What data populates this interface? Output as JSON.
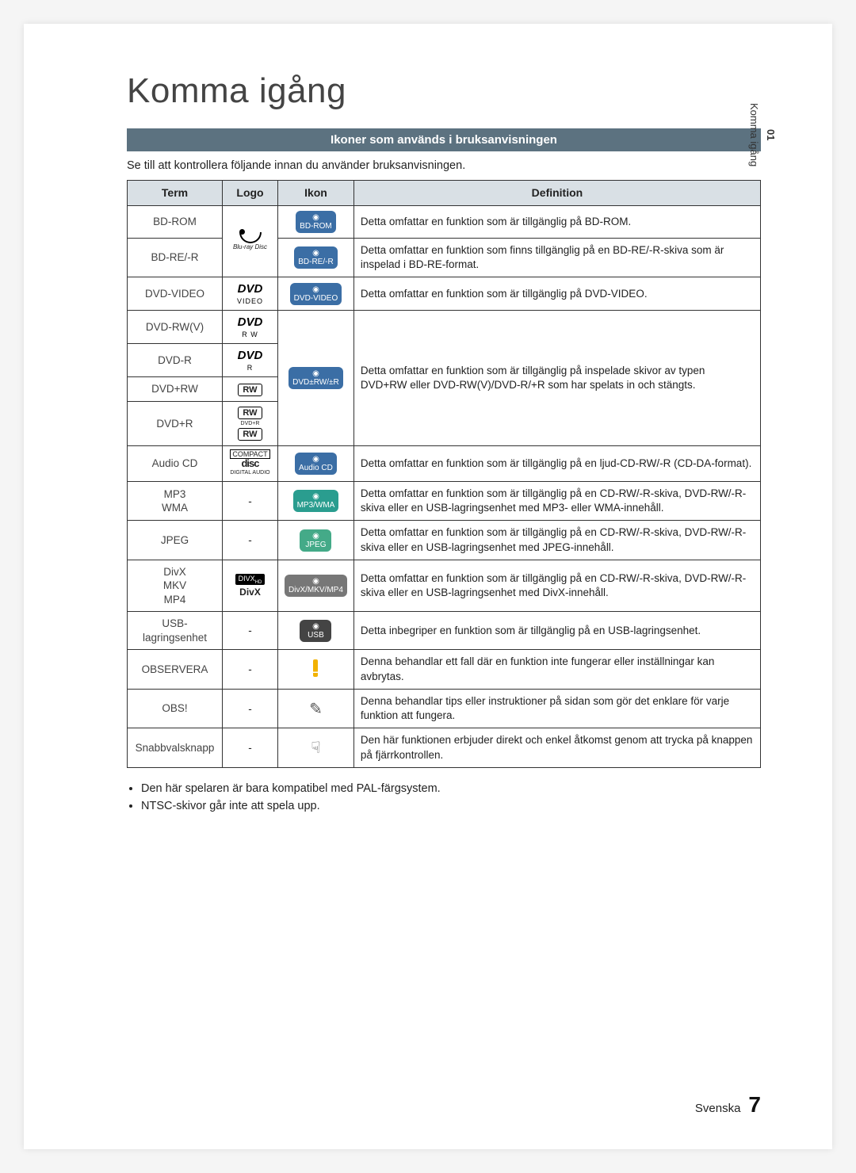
{
  "page": {
    "title": "Komma igång",
    "section_heading": "Ikoner som används i bruksanvisningen",
    "intro": "Se till att kontrollera följande innan du använder bruksanvisningen.",
    "side_tab": {
      "number": "01",
      "label": "Komma igång"
    },
    "footer": {
      "lang": "Svenska",
      "page_number": "7"
    }
  },
  "table": {
    "headers": {
      "term": "Term",
      "logo": "Logo",
      "ikon": "Ikon",
      "definition": "Definition"
    },
    "col_widths": {
      "term": 120,
      "logo": 70,
      "icon": 70
    },
    "border_color": "#333333",
    "header_bg": "#d9e0e5",
    "rows": [
      {
        "term": "BD-ROM",
        "logo": "bluray",
        "icon": {
          "label": "BD-ROM",
          "style": "blue"
        },
        "definition": "Detta omfattar en funktion som är tillgänglig på BD-ROM."
      },
      {
        "term": "BD-RE/-R",
        "logo": "bluray",
        "icon": {
          "label": "BD-RE/-R",
          "style": "blue"
        },
        "definition": "Detta omfattar en funktion som finns tillgänglig på en BD-RE/-R-skiva som är inspelad i BD-RE-format."
      },
      {
        "term": "DVD-VIDEO",
        "logo": "dvd-video",
        "icon": {
          "label": "DVD-VIDEO",
          "style": "blue"
        },
        "definition": "Detta omfattar en funktion som är tillgänglig på DVD-VIDEO."
      },
      {
        "term": "DVD-RW(V)",
        "logo": "dvd-rw",
        "icon": {
          "label": "DVD±RW/±R",
          "style": "blue"
        },
        "definition": "Detta omfattar en funktion som är tillgänglig på inspelade skivor av typen DVD+RW eller DVD-RW(V)/DVD-R/+R som har spelats in och stängts."
      },
      {
        "term": "DVD-R",
        "logo": "dvd-r"
      },
      {
        "term": "DVD+RW",
        "logo": "rw"
      },
      {
        "term": "DVD+R",
        "logo": "rw-double"
      },
      {
        "term": "Audio CD",
        "logo": "cd",
        "icon": {
          "label": "Audio CD",
          "style": "blue"
        },
        "definition": "Detta omfattar en funktion som är tillgänglig på en ljud-CD-RW/-R (CD-DA-format)."
      },
      {
        "term": "MP3\nWMA",
        "logo": "-",
        "icon": {
          "label": "MP3/WMA",
          "style": "teal"
        },
        "definition": "Detta omfattar en funktion som är tillgänglig på en CD-RW/-R-skiva, DVD-RW/-R-skiva eller en USB-lagringsenhet med MP3- eller WMA-innehåll."
      },
      {
        "term": "JPEG",
        "logo": "-",
        "icon": {
          "label": "JPEG",
          "style": "green"
        },
        "definition": "Detta omfattar en funktion som är tillgänglig på en CD-RW/-R-skiva, DVD-RW/-R-skiva eller en USB-lagringsenhet med JPEG-innehåll."
      },
      {
        "term": "DivX\nMKV\nMP4",
        "logo": "divx",
        "icon": {
          "label": "DivX/MKV/MP4",
          "style": "grey"
        },
        "definition": "Detta omfattar en funktion som är tillgänglig på en CD-RW/-R-skiva, DVD-RW/-R-skiva eller en USB-lagringsenhet med DivX-innehåll."
      },
      {
        "term": "USB-\nlagringsenhet",
        "logo": "-",
        "icon": {
          "label": "USB",
          "style": "dark"
        },
        "definition": "Detta inbegriper en funktion som är tillgänglig på en USB-lagringsenhet."
      },
      {
        "term": "OBSERVERA",
        "logo": "-",
        "icon": {
          "label": "caution",
          "style": "caution"
        },
        "definition": "Denna behandlar ett fall där en funktion inte fungerar eller inställningar kan avbrytas."
      },
      {
        "term": "OBS!",
        "logo": "-",
        "icon": {
          "label": "note",
          "style": "note"
        },
        "definition": "Denna behandlar tips eller instruktioner på sidan som gör det enklare för varje funktion att fungera."
      },
      {
        "term": "Snabbvalsknapp",
        "logo": "-",
        "icon": {
          "label": "hand",
          "style": "hand"
        },
        "definition": "Den här funktionen erbjuder direkt och enkel åtkomst genom att trycka på knappen på fjärrkontrollen."
      }
    ]
  },
  "bullets": [
    "Den här spelaren är bara kompatibel med PAL-färgsystem.",
    "NTSC-skivor går inte att spela upp."
  ],
  "colors": {
    "section_bar_bg": "#5c7280",
    "section_bar_fg": "#ffffff",
    "page_bg": "#ffffff"
  }
}
